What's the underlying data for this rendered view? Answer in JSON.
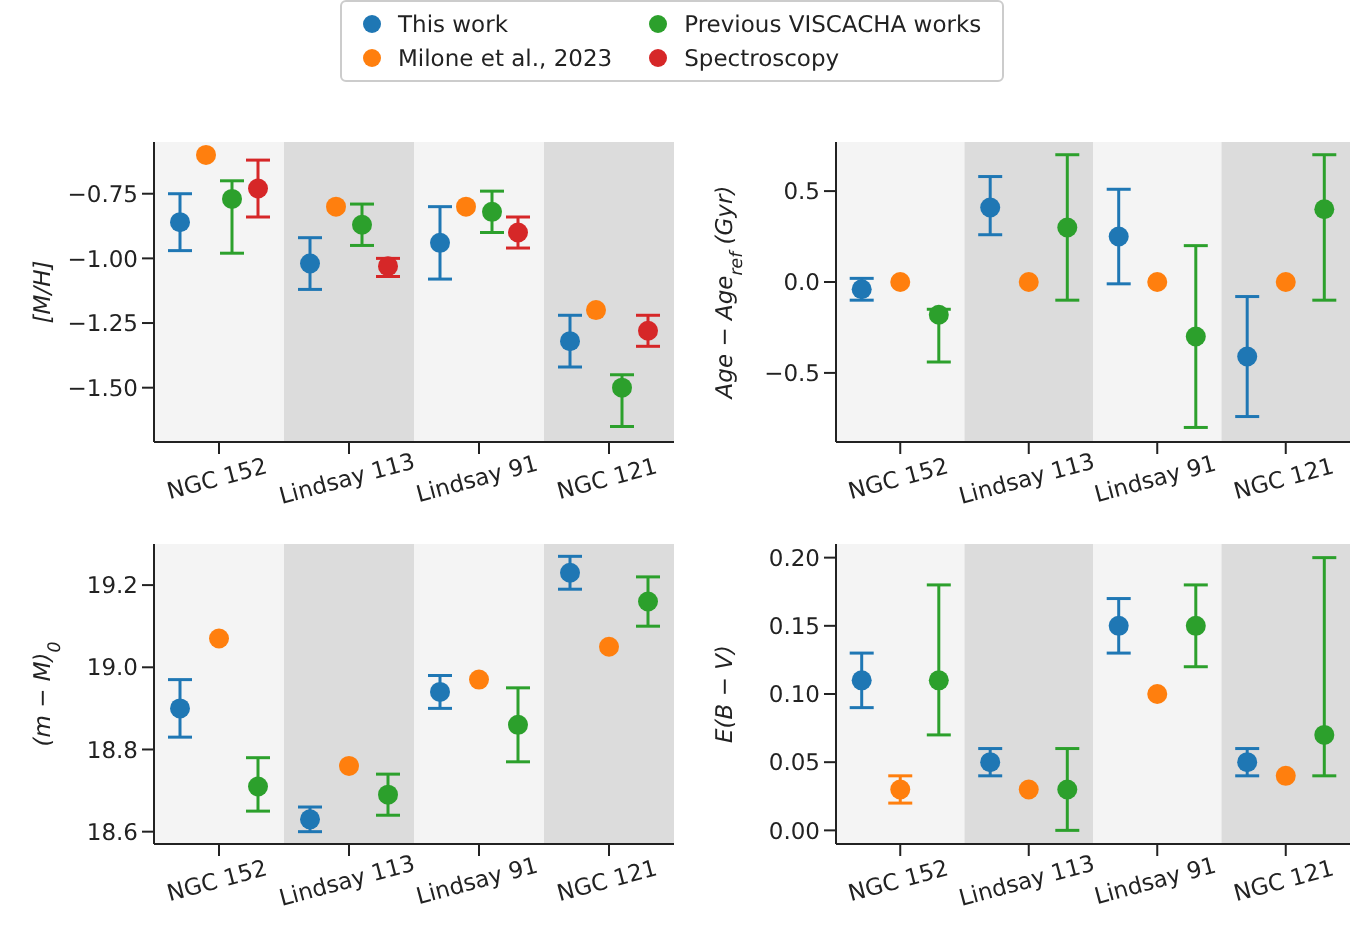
{
  "chart_data": [
    {
      "type": "scatter",
      "ylabel": "[M/H]",
      "categories": [
        "NGC 152",
        "Lindsay 113",
        "Lindsay 91",
        "NGC 121"
      ],
      "ylim": [
        -1.71,
        -0.55
      ],
      "yticks": [
        {
          "value": -1.5,
          "label": "−1.50"
        },
        {
          "value": -1.25,
          "label": "−1.25"
        },
        {
          "value": -1.0,
          "label": "−1.00"
        },
        {
          "value": -0.75,
          "label": "−0.75"
        }
      ],
      "marker": "circle",
      "legend": "top",
      "bands": [
        {
          "axis": "x",
          "from": "NGC 152",
          "to": "NGC 152",
          "color": "#f4f4f4"
        },
        {
          "axis": "x",
          "from": "Lindsay 113",
          "to": "Lindsay 113",
          "color": "#dcdcdc"
        },
        {
          "axis": "x",
          "from": "Lindsay 91",
          "to": "Lindsay 91",
          "color": "#f4f4f4"
        },
        {
          "axis": "x",
          "from": "NGC 121",
          "to": "NGC 121",
          "color": "#dcdcdc"
        }
      ],
      "series": [
        {
          "name": "This work",
          "color": "#1f77b4",
          "values": [
            -0.86,
            -1.02,
            -0.94,
            -1.32
          ],
          "errors": [
            [
              -0.97,
              -0.75
            ],
            [
              -1.12,
              -0.92
            ],
            [
              -1.08,
              -0.8
            ],
            [
              -1.42,
              -1.22
            ]
          ]
        },
        {
          "name": "Milone et al., 2023",
          "color": "#ff7f0e",
          "values": [
            -0.6,
            -0.8,
            -0.8,
            -1.2
          ]
        },
        {
          "name": "Previous VISCACHA works",
          "color": "#2ca02c",
          "values": [
            -0.77,
            -0.87,
            -0.82,
            -1.5
          ],
          "errors": [
            [
              -0.98,
              -0.7
            ],
            [
              -0.95,
              -0.79
            ],
            [
              -0.9,
              -0.74
            ],
            [
              -1.65,
              -1.45
            ]
          ]
        },
        {
          "name": "Spectroscopy",
          "color": "#d62728",
          "values": [
            -0.73,
            -1.03,
            -0.9,
            -1.28
          ],
          "errors": [
            [
              -0.84,
              -0.62
            ],
            [
              -1.07,
              -1.0
            ],
            [
              -0.96,
              -0.84
            ],
            [
              -1.34,
              -1.22
            ]
          ]
        }
      ]
    },
    {
      "type": "scatter",
      "ylabel": "Age − Age$_{ref}$ (Gyr)",
      "categories": [
        "NGC 152",
        "Lindsay 113",
        "Lindsay 91",
        "NGC 121"
      ],
      "ylim": [
        -0.88,
        0.77
      ],
      "yticks": [
        {
          "value": -0.5,
          "label": "−0.5"
        },
        {
          "value": 0,
          "label": "0.0"
        },
        0.5
      ],
      "marker": "circle",
      "bands": [
        {
          "axis": "x",
          "from": "NGC 152",
          "to": "NGC 152",
          "color": "#f4f4f4"
        },
        {
          "axis": "x",
          "from": "Lindsay 113",
          "to": "Lindsay 113",
          "color": "#dcdcdc"
        },
        {
          "axis": "x",
          "from": "Lindsay 91",
          "to": "Lindsay 91",
          "color": "#f4f4f4"
        },
        {
          "axis": "x",
          "from": "NGC 121",
          "to": "NGC 121",
          "color": "#dcdcdc"
        }
      ],
      "series": [
        {
          "color": "#1f77b4",
          "values": [
            -0.04,
            0.41,
            0.25,
            -0.41
          ],
          "errors": [
            [
              -0.1,
              0.02
            ],
            [
              0.26,
              0.58
            ],
            [
              -0.01,
              0.51
            ],
            [
              -0.74,
              -0.08
            ]
          ]
        },
        {
          "color": "#ff7f0e",
          "values": [
            0,
            0,
            0,
            0
          ]
        },
        {
          "color": "#2ca02c",
          "values": [
            -0.18,
            0.3,
            -0.3,
            0.4
          ],
          "errors": [
            [
              -0.44,
              -0.15
            ],
            [
              -0.1,
              0.7
            ],
            [
              -0.8,
              0.2
            ],
            [
              -0.1,
              0.7
            ]
          ]
        }
      ]
    },
    {
      "type": "scatter",
      "ylabel": "(m − M)$_{0}$",
      "categories": [
        "NGC 152",
        "Lindsay 113",
        "Lindsay 91",
        "NGC 121"
      ],
      "ylim": [
        18.57,
        19.3
      ],
      "yticks": [
        {
          "value": 18.6,
          "label": "18.6"
        },
        {
          "value": 18.8,
          "label": "18.8"
        },
        {
          "value": 19.0,
          "label": "19.0"
        },
        {
          "value": 19.2,
          "label": "19.2"
        }
      ],
      "marker": "circle",
      "bands": [
        {
          "axis": "x",
          "from": "NGC 152",
          "to": "NGC 152",
          "color": "#f4f4f4"
        },
        {
          "axis": "x",
          "from": "Lindsay 113",
          "to": "Lindsay 113",
          "color": "#dcdcdc"
        },
        {
          "axis": "x",
          "from": "Lindsay 91",
          "to": "Lindsay 91",
          "color": "#f4f4f4"
        },
        {
          "axis": "x",
          "from": "NGC 121",
          "to": "NGC 121",
          "color": "#dcdcdc"
        }
      ],
      "series": [
        {
          "color": "#1f77b4",
          "values": [
            18.9,
            18.63,
            18.94,
            19.23
          ],
          "errors": [
            [
              18.83,
              18.97
            ],
            [
              18.6,
              18.66
            ],
            [
              18.9,
              18.98
            ],
            [
              19.19,
              19.27
            ]
          ]
        },
        {
          "color": "#ff7f0e",
          "values": [
            19.07,
            18.76,
            18.97,
            19.05
          ]
        },
        {
          "color": "#2ca02c",
          "values": [
            18.71,
            18.69,
            18.86,
            19.16
          ],
          "errors": [
            [
              18.65,
              18.78
            ],
            [
              18.64,
              18.74
            ],
            [
              18.77,
              18.95
            ],
            [
              19.1,
              19.22
            ]
          ]
        }
      ]
    },
    {
      "type": "scatter",
      "ylabel": "E(B − V)",
      "categories": [
        "NGC 152",
        "Lindsay 113",
        "Lindsay 91",
        "NGC 121"
      ],
      "ylim": [
        -0.01,
        0.21
      ],
      "yticks": [
        {
          "value": 0,
          "label": "0.00"
        },
        {
          "value": 0.05,
          "label": "0.05"
        },
        {
          "value": 0.1,
          "label": "0.10"
        },
        {
          "value": 0.15,
          "label": "0.15"
        },
        {
          "value": 0.2,
          "label": "0.20"
        }
      ],
      "marker": "circle",
      "bands": [
        {
          "axis": "x",
          "from": "NGC 152",
          "to": "NGC 152",
          "color": "#f4f4f4"
        },
        {
          "axis": "x",
          "from": "Lindsay 113",
          "to": "Lindsay 113",
          "color": "#dcdcdc"
        },
        {
          "axis": "x",
          "from": "Lindsay 91",
          "to": "Lindsay 91",
          "color": "#f4f4f4"
        },
        {
          "axis": "x",
          "from": "NGC 121",
          "to": "NGC 121",
          "color": "#dcdcdc"
        }
      ],
      "series": [
        {
          "color": "#1f77b4",
          "values": [
            0.11,
            0.05,
            0.15,
            0.05
          ],
          "errors": [
            [
              0.09,
              0.13
            ],
            [
              0.04,
              0.06
            ],
            [
              0.13,
              0.17
            ],
            [
              0.04,
              0.06
            ]
          ]
        },
        {
          "color": "#ff7f0e",
          "values": [
            0.03,
            0.03,
            0.1,
            0.04
          ],
          "errors": [
            [
              0.02,
              0.04
            ],
            null,
            null,
            null
          ]
        },
        {
          "color": "#2ca02c",
          "values": [
            0.11,
            0.03,
            0.15,
            0.07
          ],
          "errors": [
            [
              0.07,
              0.18
            ],
            [
              0.0,
              0.06
            ],
            [
              0.12,
              0.18
            ],
            [
              0.04,
              0.2
            ]
          ]
        }
      ]
    }
  ]
}
